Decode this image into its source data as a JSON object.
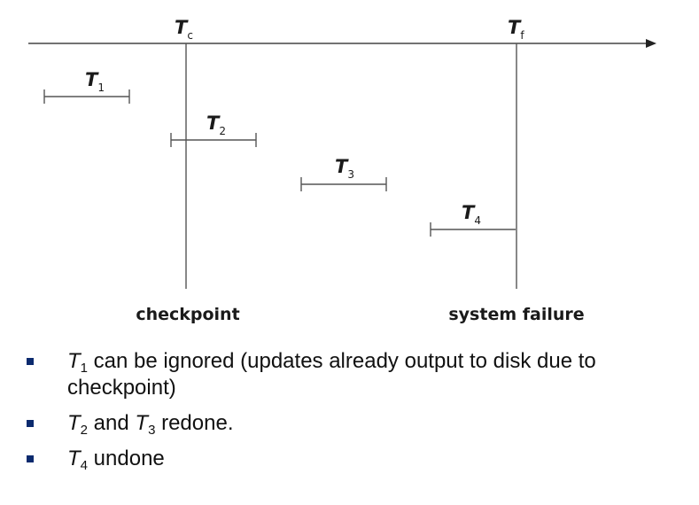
{
  "timeline": {
    "checkpoint_label": {
      "main": "T",
      "sub": "c"
    },
    "failure_label": {
      "main": "T",
      "sub": "f"
    },
    "checkpoint_caption": "checkpoint",
    "failure_caption": "system failure"
  },
  "transactions": [
    {
      "main": "T",
      "sub": "1"
    },
    {
      "main": "T",
      "sub": "2"
    },
    {
      "main": "T",
      "sub": "3"
    },
    {
      "main": "T",
      "sub": "4"
    }
  ],
  "notes": [
    {
      "t": "T",
      "s": "1",
      "text": " can be ignored (updates already output to disk due to checkpoint)"
    },
    {
      "t": "T",
      "s": "2",
      "mid": " and ",
      "t2": "T",
      "s2": "3",
      "text": " redone."
    },
    {
      "t": "T",
      "s": "4",
      "text": " undone"
    }
  ],
  "colors": {
    "line": "#555555",
    "bullet": "#0b2a6e"
  }
}
